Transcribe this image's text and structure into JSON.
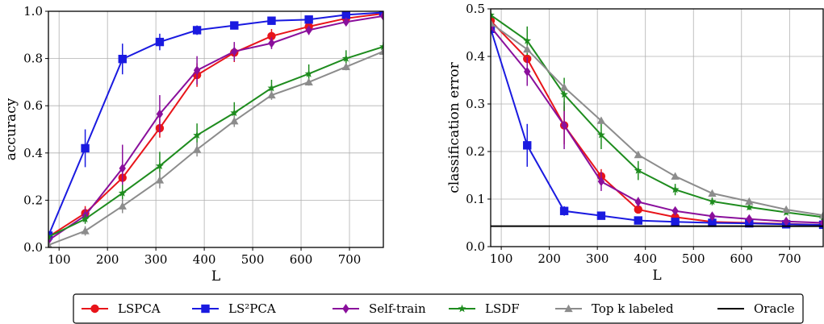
{
  "chart_data": [
    {
      "type": "line",
      "title": "",
      "xlabel": "L",
      "ylabel": "accuracy",
      "xlim": [
        78,
        770
      ],
      "ylim": [
        0.0,
        1.0
      ],
      "xticks": [
        100,
        200,
        300,
        400,
        500,
        600,
        700
      ],
      "xtick_labels": [
        "100",
        "200",
        "300",
        "400",
        "500",
        "600",
        "700"
      ],
      "yticks": [
        0.0,
        0.2,
        0.4,
        0.6,
        0.8,
        1.0
      ],
      "ytick_labels": [
        "0.0",
        "0.2",
        "0.4",
        "0.6",
        "0.8",
        "1.0"
      ],
      "grid": true,
      "x": [
        78,
        154,
        231,
        308,
        385,
        462,
        539,
        616,
        693,
        770
      ],
      "series": [
        {
          "name": "LSPCA",
          "color": "#e8141a",
          "marker": "circle",
          "values": [
            0.045,
            0.145,
            0.295,
            0.505,
            0.73,
            0.825,
            0.895,
            0.935,
            0.97,
            0.99
          ],
          "errors": [
            0.02,
            0.03,
            0.04,
            0.04,
            0.05,
            0.04,
            0.03,
            0.02,
            0.02,
            0.01
          ]
        },
        {
          "name": "LS²PCA",
          "color": "#1a1ae0",
          "marker": "square",
          "values": [
            0.05,
            0.42,
            0.798,
            0.87,
            0.92,
            0.94,
            0.96,
            0.965,
            0.985,
            0.995
          ],
          "errors": [
            0.02,
            0.08,
            0.065,
            0.035,
            0.02,
            0.015,
            0.01,
            0.01,
            0.01,
            0.005
          ]
        },
        {
          "name": "Self-train",
          "color": "#8a0f9c",
          "marker": "diamond",
          "values": [
            0.03,
            0.135,
            0.335,
            0.565,
            0.75,
            0.83,
            0.865,
            0.92,
            0.955,
            0.98
          ],
          "errors": [
            0.02,
            0.03,
            0.1,
            0.08,
            0.06,
            0.04,
            0.025,
            0.02,
            0.015,
            0.01
          ]
        },
        {
          "name": "LSDF",
          "color": "#1e8c1e",
          "marker": "star",
          "values": [
            0.045,
            0.12,
            0.23,
            0.345,
            0.475,
            0.57,
            0.675,
            0.735,
            0.8,
            0.85
          ],
          "errors": [
            0.015,
            0.02,
            0.035,
            0.06,
            0.05,
            0.045,
            0.035,
            0.04,
            0.035,
            0.02
          ]
        },
        {
          "name": "Top k labeled",
          "color": "#8c8c8c",
          "marker": "triangle",
          "values": [
            0.01,
            0.07,
            0.175,
            0.285,
            0.415,
            0.535,
            0.645,
            0.7,
            0.765,
            0.83
          ],
          "errors": [
            0.01,
            0.02,
            0.03,
            0.035,
            0.03,
            0.025,
            0.02,
            0.015,
            0.015,
            0.01
          ]
        }
      ]
    },
    {
      "type": "line",
      "title": "",
      "xlabel": "L",
      "ylabel": "classification error",
      "xlim": [
        78,
        770
      ],
      "ylim": [
        0.0,
        0.5
      ],
      "xticks": [
        100,
        200,
        300,
        400,
        500,
        600,
        700
      ],
      "xtick_labels": [
        "100",
        "200",
        "300",
        "400",
        "500",
        "600",
        "700"
      ],
      "yticks": [
        0.0,
        0.1,
        0.2,
        0.3,
        0.4,
        0.5
      ],
      "ytick_labels": [
        "0.0",
        "0.1",
        "0.2",
        "0.3",
        "0.4",
        "0.5"
      ],
      "grid": true,
      "x": [
        78,
        154,
        231,
        308,
        385,
        462,
        539,
        616,
        693,
        770
      ],
      "series": [
        {
          "name": "LSPCA",
          "color": "#e8141a",
          "marker": "circle",
          "values": [
            0.475,
            0.395,
            0.255,
            0.148,
            0.078,
            0.062,
            0.052,
            0.05,
            0.048,
            0.046
          ],
          "errors": [
            0.01,
            0.02,
            0.04,
            0.015,
            0.008,
            0.006,
            0.004,
            0.003,
            0.003,
            0.003
          ]
        },
        {
          "name": "LS²PCA",
          "color": "#1a1ae0",
          "marker": "square",
          "values": [
            0.458,
            0.213,
            0.075,
            0.065,
            0.055,
            0.052,
            0.05,
            0.049,
            0.047,
            0.046
          ],
          "errors": [
            0.01,
            0.045,
            0.01,
            0.006,
            0.005,
            0.004,
            0.003,
            0.003,
            0.003,
            0.003
          ]
        },
        {
          "name": "Self-train",
          "color": "#8a0f9c",
          "marker": "diamond",
          "values": [
            0.462,
            0.368,
            0.255,
            0.137,
            0.094,
            0.075,
            0.064,
            0.058,
            0.053,
            0.05
          ],
          "errors": [
            0.01,
            0.03,
            0.05,
            0.02,
            0.01,
            0.008,
            0.006,
            0.005,
            0.004,
            0.004
          ]
        },
        {
          "name": "LSDF",
          "color": "#1e8c1e",
          "marker": "star",
          "values": [
            0.487,
            0.433,
            0.32,
            0.235,
            0.16,
            0.12,
            0.095,
            0.083,
            0.072,
            0.062
          ],
          "errors": [
            0.01,
            0.03,
            0.035,
            0.03,
            0.02,
            0.012,
            0.008,
            0.006,
            0.005,
            0.005
          ]
        },
        {
          "name": "Top k labeled",
          "color": "#8c8c8c",
          "marker": "triangle",
          "values": [
            0.47,
            0.415,
            0.335,
            0.265,
            0.193,
            0.148,
            0.112,
            0.095,
            0.078,
            0.066
          ],
          "errors": [
            0.005,
            0.008,
            0.008,
            0.007,
            0.006,
            0.005,
            0.004,
            0.004,
            0.004,
            0.003
          ]
        },
        {
          "name": "Oracle",
          "color": "#000000",
          "marker": "none",
          "hline": 0.043
        }
      ]
    }
  ],
  "legend": {
    "placement": "bottom",
    "entries": [
      {
        "label": "LSPCA",
        "color": "#e8141a",
        "marker": "circle"
      },
      {
        "label": "LS²PCA",
        "color": "#1a1ae0",
        "marker": "square"
      },
      {
        "label": "Self-train",
        "color": "#8a0f9c",
        "marker": "diamond"
      },
      {
        "label": "LSDF",
        "color": "#1e8c1e",
        "marker": "star"
      },
      {
        "label": "Top k labeled",
        "color": "#8c8c8c",
        "marker": "triangle"
      },
      {
        "label": "Oracle",
        "color": "#000000",
        "marker": "none"
      }
    ]
  }
}
